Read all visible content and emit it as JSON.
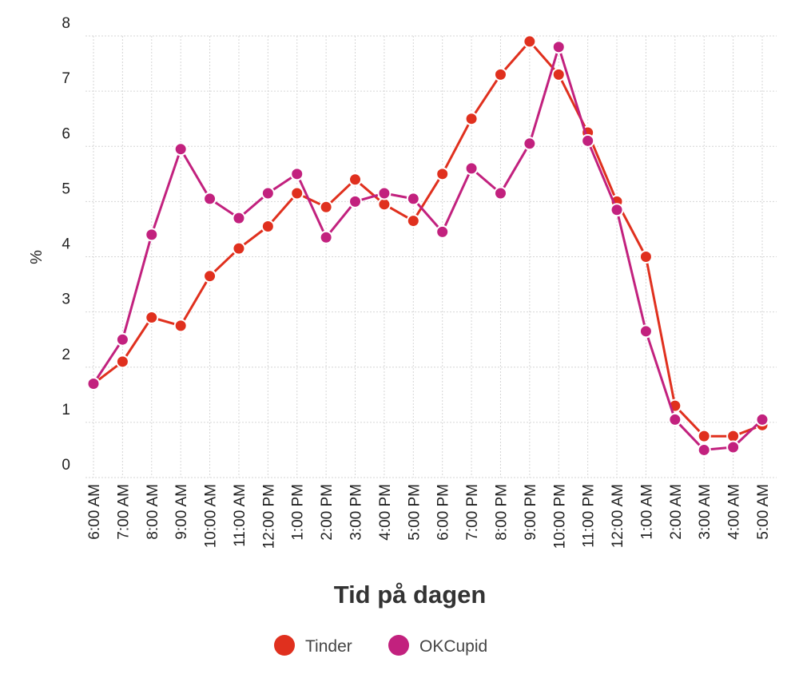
{
  "chart_data": {
    "type": "line",
    "title": "",
    "xlabel": "Tid på dagen",
    "ylabel": "%",
    "ylim": [
      0,
      8
    ],
    "yticks": [
      "0",
      "1",
      "2",
      "3",
      "4",
      "5",
      "6",
      "7",
      "8"
    ],
    "grid": true,
    "legend_position": "bottom",
    "categories": [
      "6:00 AM",
      "7:00 AM",
      "8:00 AM",
      "9:00 AM",
      "10:00 AM",
      "11:00 AM",
      "12:00 PM",
      "1:00 PM",
      "2:00 PM",
      "3:00 PM",
      "4:00 PM",
      "5:00 PM",
      "6:00 PM",
      "7:00 PM",
      "8:00 PM",
      "9:00 PM",
      "10:00 PM",
      "11:00 PM",
      "12:00 AM",
      "1:00 AM",
      "2:00 AM",
      "3:00 AM",
      "4:00 AM",
      "5:00 AM"
    ],
    "series": [
      {
        "name": "Tinder",
        "color": "#e0301e",
        "values": [
          1.7,
          2.1,
          2.9,
          2.75,
          3.65,
          4.15,
          4.55,
          5.15,
          4.9,
          5.4,
          4.95,
          4.65,
          5.5,
          6.5,
          7.3,
          7.9,
          7.3,
          6.25,
          5.0,
          4.0,
          1.3,
          0.75,
          0.75,
          0.95
        ]
      },
      {
        "name": "OKCupid",
        "color": "#c2217e",
        "values": [
          1.7,
          2.5,
          4.4,
          5.95,
          5.05,
          4.7,
          5.15,
          5.5,
          4.35,
          5.0,
          5.15,
          5.05,
          4.45,
          5.6,
          5.15,
          6.05,
          7.8,
          6.1,
          4.85,
          2.65,
          1.05,
          0.5,
          0.55,
          1.05
        ]
      }
    ]
  }
}
